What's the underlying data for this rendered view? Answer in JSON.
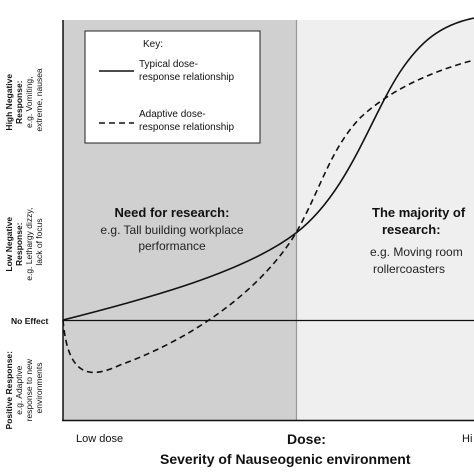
{
  "y_axis": {
    "high": {
      "title_lines": [
        "High Negative",
        "Response:"
      ],
      "desc_lines": [
        "e.g. Vomiting,",
        "extreme, nausea"
      ]
    },
    "low": {
      "title_lines": [
        "Low Negative",
        "Response:"
      ],
      "desc_lines": [
        "e.g. Lethargy dizzy,",
        "lack of focus"
      ]
    },
    "no_effect": "No Effect",
    "positive": {
      "title_lines": [
        "Positive Response:"
      ],
      "desc_lines": [
        "e.g. Adaptive",
        "response to new",
        "environments"
      ]
    }
  },
  "x_axis": {
    "low_dose": "Low dose",
    "high_dose": "Hi",
    "dose_label": "Dose:",
    "title": "Severity of Nauseogenic environment"
  },
  "regions": {
    "left": {
      "title": "Need for research:",
      "sub_lines": [
        "e.g. Tall building workplace",
        "performance"
      ],
      "color": "#d0d0d0"
    },
    "right": {
      "title_lines": [
        "The majority of",
        "research:"
      ],
      "sub_lines": [
        "e.g. Moving room",
        "rollercoasters"
      ],
      "color": "#efefef"
    }
  },
  "key": {
    "title": "Key:",
    "typical": [
      "Typical dose-",
      "response relationship"
    ],
    "adaptive": [
      "Adaptive dose-",
      "response relationship"
    ]
  },
  "colors": {
    "line": "#111111",
    "divider": "#999999"
  }
}
